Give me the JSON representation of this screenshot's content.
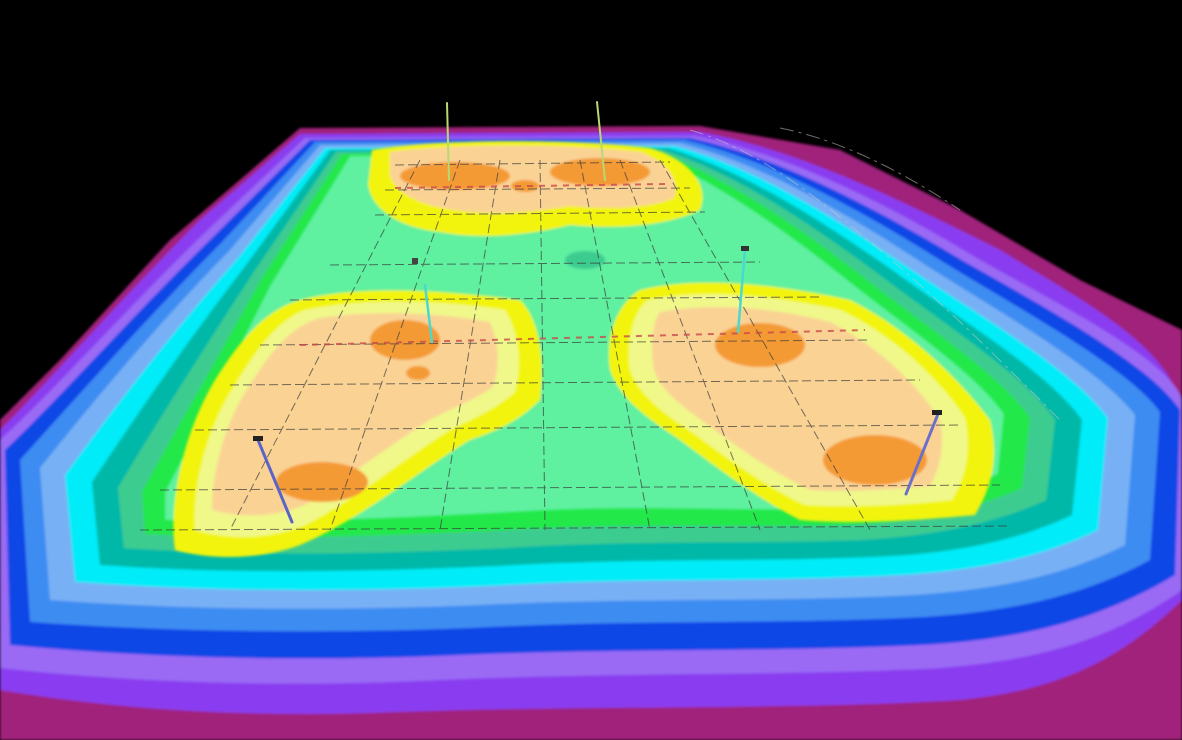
{
  "scene": {
    "subject": "illuminance-contour-plot",
    "palette": {
      "background": "#000000",
      "outer_magenta": "#a0207a",
      "violet": "#8a3cf0",
      "lilac": "#9a6af5",
      "blue": "#0a46e6",
      "sky": "#3c8cf2",
      "light_blue": "#78b0f5",
      "cyan": "#00ecf8",
      "teal": "#00b8a8",
      "sea_green": "#3ccc90",
      "green": "#22e84a",
      "mint": "#5ef0a0",
      "yellow": "#f2f40a",
      "pale_yellow": "#f0f88a",
      "peach": "#fad394",
      "orange": "#f49a34",
      "grid_line": "#3a3a3a",
      "pole": "#7ab8d8"
    }
  }
}
